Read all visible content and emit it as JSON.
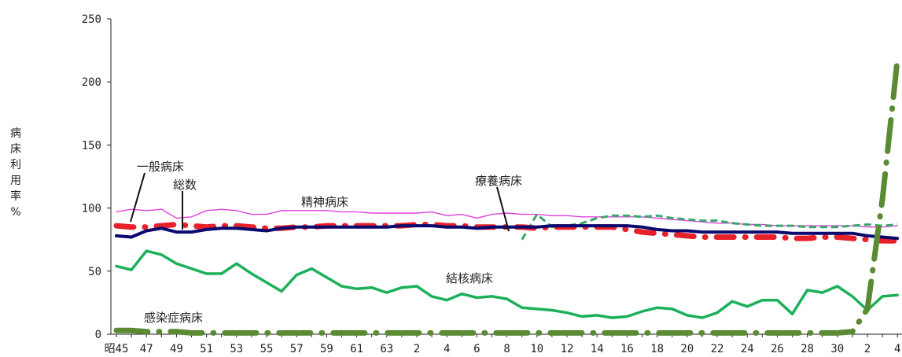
{
  "chart_data": {
    "type": "line",
    "ylabel": "病床利用率%",
    "ylim": [
      0,
      250
    ],
    "yticks": [
      0,
      50,
      100,
      150,
      200,
      250
    ],
    "x": [
      "昭45",
      "46",
      "47",
      "48",
      "49",
      "50",
      "51",
      "52",
      "53",
      "54",
      "55",
      "56",
      "57",
      "58",
      "59",
      "60",
      "61",
      "62",
      "63",
      "元",
      "2",
      "3",
      "4",
      "5",
      "6",
      "7",
      "8",
      "9",
      "10",
      "11",
      "12",
      "13",
      "14",
      "15",
      "16",
      "17",
      "18",
      "19",
      "20",
      "21",
      "22",
      "23",
      "24",
      "25",
      "26",
      "27",
      "28",
      "29",
      "30",
      "元",
      "2",
      "3",
      "4"
    ],
    "xtick_labels": [
      "昭45",
      "47",
      "49",
      "51",
      "53",
      "55",
      "57",
      "59",
      "61",
      "63",
      "2",
      "4",
      "6",
      "8",
      "10",
      "12",
      "14",
      "16",
      "18",
      "20",
      "22",
      "24",
      "26",
      "28",
      "30",
      "2",
      "4"
    ],
    "series": [
      {
        "name": "精神病床",
        "color": "#e040e0",
        "style": "solid-thin",
        "values": [
          97,
          99,
          98,
          99,
          92,
          93,
          98,
          99,
          98,
          95,
          95,
          98,
          98,
          98,
          98,
          97,
          97,
          96,
          96,
          96,
          96,
          97,
          94,
          95,
          92,
          95,
          96,
          95,
          95,
          94,
          94,
          93,
          93,
          93,
          93,
          93,
          92,
          91,
          90,
          89,
          88,
          88,
          87,
          87,
          86,
          86,
          86,
          86,
          86,
          86,
          85,
          85,
          86
        ]
      },
      {
        "name": "療養病床",
        "color": "#3aa86a",
        "style": "dashed",
        "values": [
          null,
          null,
          null,
          null,
          null,
          null,
          null,
          null,
          null,
          null,
          null,
          null,
          null,
          null,
          null,
          null,
          null,
          null,
          null,
          null,
          null,
          null,
          null,
          null,
          null,
          null,
          null,
          75,
          95,
          85,
          86,
          88,
          92,
          94,
          94,
          93,
          94,
          92,
          91,
          90,
          90,
          88,
          87,
          86,
          86,
          86,
          85,
          85,
          85,
          86,
          87,
          86,
          87
        ]
      },
      {
        "name": "一般病床",
        "color": "#e8202a",
        "style": "dash-dot",
        "values": [
          86,
          85,
          85,
          86,
          87,
          86,
          85,
          86,
          86,
          85,
          84,
          84,
          85,
          85,
          86,
          86,
          86,
          86,
          86,
          86,
          87,
          87,
          86,
          86,
          85,
          85,
          85,
          85,
          84,
          85,
          85,
          85,
          85,
          85,
          83,
          81,
          80,
          79,
          78,
          77,
          77,
          77,
          77,
          77,
          77,
          76,
          76,
          77,
          77,
          76,
          75,
          74,
          74
        ]
      },
      {
        "name": "総数",
        "color": "#0a0a6e",
        "style": "solid-thick",
        "values": [
          78,
          77,
          82,
          84,
          81,
          81,
          83,
          84,
          84,
          83,
          82,
          84,
          85,
          85,
          85,
          85,
          85,
          85,
          85,
          86,
          86,
          86,
          85,
          85,
          84,
          85,
          85,
          85,
          85,
          86,
          86,
          86,
          86,
          86,
          86,
          85,
          83,
          82,
          82,
          81,
          81,
          81,
          81,
          81,
          81,
          80,
          80,
          80,
          80,
          80,
          78,
          77,
          76
        ]
      },
      {
        "name": "結核病床",
        "color": "#1cb05a",
        "style": "solid",
        "values": [
          54,
          51,
          66,
          63,
          56,
          52,
          48,
          48,
          56,
          48,
          41,
          34,
          47,
          52,
          45,
          38,
          36,
          37,
          33,
          37,
          38,
          30,
          27,
          32,
          29,
          30,
          28,
          21,
          20,
          19,
          17,
          14,
          15,
          13,
          14,
          18,
          21,
          20,
          15,
          13,
          17,
          26,
          22,
          27,
          27,
          16,
          35,
          33,
          38,
          30,
          19,
          30,
          31
        ]
      },
      {
        "name": "感染症病床",
        "color": "#5a8a32",
        "style": "dash-dot-thick",
        "values": [
          3,
          3,
          2,
          2,
          2,
          1,
          1,
          1,
          1,
          1,
          1,
          1,
          1,
          1,
          1,
          1,
          1,
          1,
          1,
          1,
          1,
          1,
          1,
          1,
          1,
          1,
          1,
          1,
          1,
          1,
          1,
          1,
          1,
          1,
          1,
          1,
          1,
          1,
          1,
          1,
          1,
          1,
          1,
          1,
          1,
          1,
          1,
          1,
          1,
          2,
          20,
          107,
          218
        ]
      }
    ]
  },
  "labels": {
    "ylabel_chars": [
      "病",
      "床",
      "利",
      "用",
      "率",
      "%"
    ],
    "series_names": {
      "ippan": "一般病床",
      "sousuu": "総数",
      "seishin": "精神病床",
      "ryouyou": "療養病床",
      "kekkaku": "結核病床",
      "kansen": "感染症病床"
    }
  }
}
